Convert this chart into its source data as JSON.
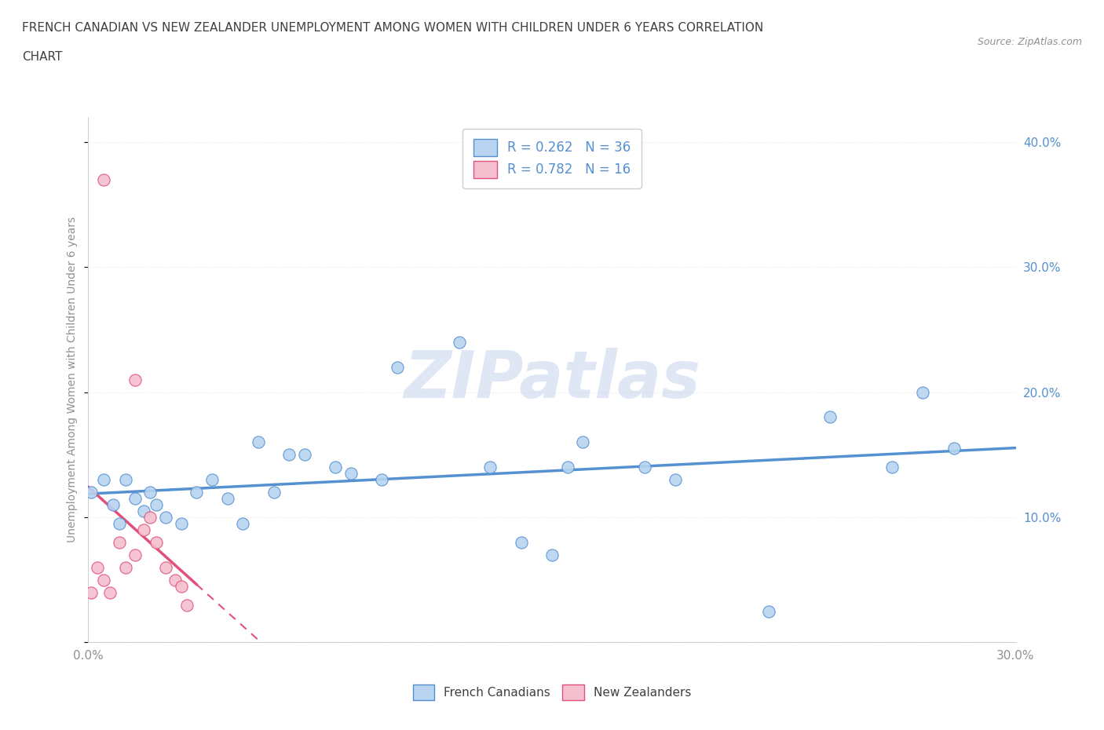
{
  "title_line1": "FRENCH CANADIAN VS NEW ZEALANDER UNEMPLOYMENT AMONG WOMEN WITH CHILDREN UNDER 6 YEARS CORRELATION",
  "title_line2": "CHART",
  "source_text": "Source: ZipAtlas.com",
  "ylabel": "Unemployment Among Women with Children Under 6 years",
  "legend_bottom": [
    "French Canadians",
    "New Zealanders"
  ],
  "blue_color": "#b8d4f0",
  "pink_color": "#f5bfcf",
  "blue_line_color": "#5590d0",
  "pink_line_color": "#e0507a",
  "watermark_color": "#c8d8ec",
  "background_color": "#ffffff",
  "fc_scatter_x": [
    0.001,
    0.005,
    0.008,
    0.01,
    0.012,
    0.015,
    0.018,
    0.02,
    0.022,
    0.025,
    0.03,
    0.035,
    0.04,
    0.045,
    0.05,
    0.055,
    0.06,
    0.065,
    0.07,
    0.08,
    0.085,
    0.095,
    0.1,
    0.12,
    0.13,
    0.14,
    0.15,
    0.155,
    0.16,
    0.18,
    0.19,
    0.22,
    0.24,
    0.26,
    0.27,
    0.28
  ],
  "fc_scatter_y": [
    0.12,
    0.13,
    0.11,
    0.095,
    0.13,
    0.115,
    0.105,
    0.12,
    0.11,
    0.1,
    0.095,
    0.12,
    0.13,
    0.115,
    0.095,
    0.16,
    0.12,
    0.15,
    0.15,
    0.14,
    0.135,
    0.13,
    0.22,
    0.24,
    0.14,
    0.08,
    0.07,
    0.14,
    0.16,
    0.14,
    0.13,
    0.025,
    0.18,
    0.14,
    0.2,
    0.155
  ],
  "nz_scatter_x": [
    0.001,
    0.003,
    0.005,
    0.007,
    0.01,
    0.012,
    0.015,
    0.018,
    0.02,
    0.022,
    0.025,
    0.028,
    0.03,
    0.032,
    0.015,
    0.005
  ],
  "nz_scatter_y": [
    0.04,
    0.06,
    0.05,
    0.04,
    0.08,
    0.06,
    0.07,
    0.09,
    0.1,
    0.08,
    0.06,
    0.05,
    0.045,
    0.03,
    0.21,
    0.37
  ],
  "xlim": [
    0.0,
    0.3
  ],
  "ylim": [
    0.0,
    0.42
  ],
  "x_ticks": [
    0.0,
    0.05,
    0.1,
    0.15,
    0.2,
    0.25,
    0.3
  ],
  "y_ticks": [
    0.0,
    0.1,
    0.2,
    0.3,
    0.4
  ],
  "grid_color": "#e8e8e8",
  "grid_linestyle": "dotted",
  "title_color": "#404040",
  "axis_label_color": "#909090",
  "tick_color": "#5590d0"
}
